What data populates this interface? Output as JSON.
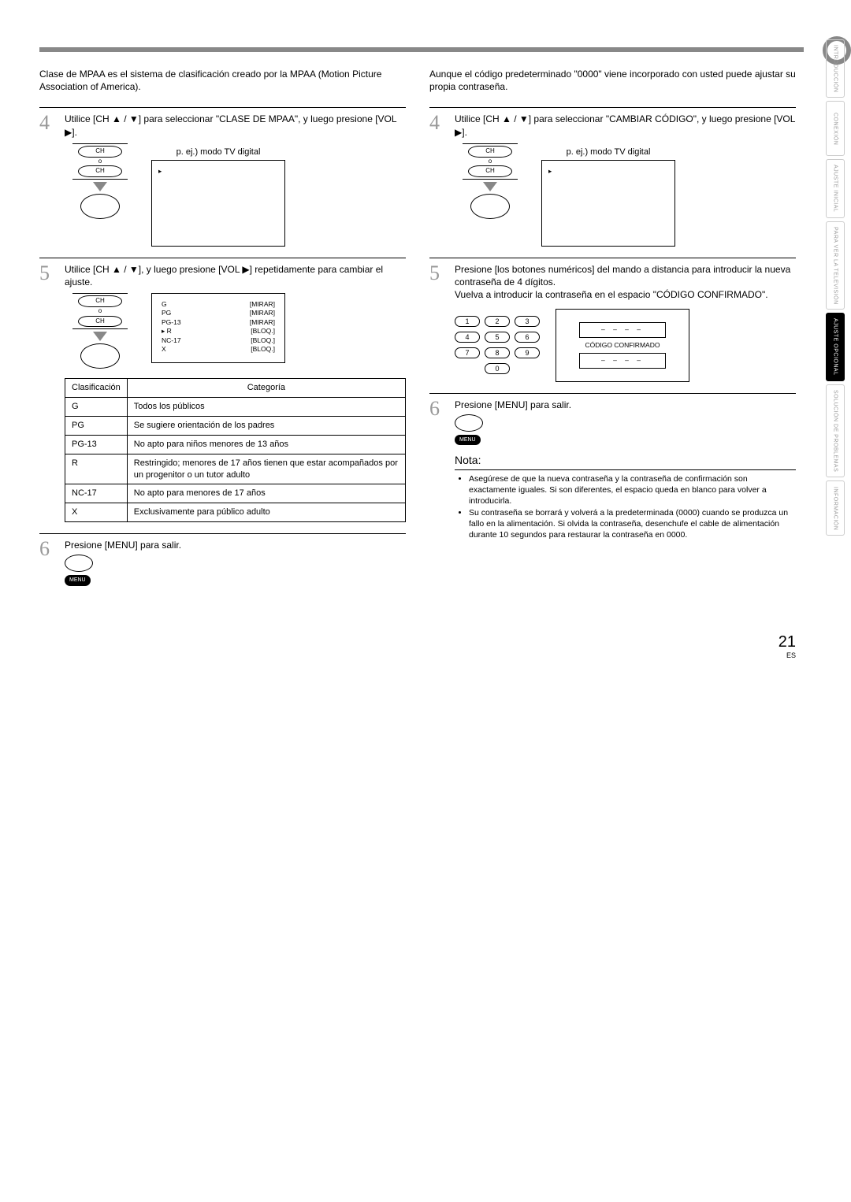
{
  "sideTabs": [
    "INTRODUCCIÓN",
    "CONEXIÓN",
    "AJUSTE INICIAL",
    "PARA VER LA TELEVISIÓN",
    "AJUSTE OPCIONAL",
    "SOLUCIÓN DE PROBLEMAS",
    "INFORMACIÓN"
  ],
  "activeTabIndex": 4,
  "left": {
    "intro": "Clase de MPAA es el sistema de clasificación creado por la MPAA (Motion Picture Association of America).",
    "step4": "Utilice [CH ▲ / ▼] para seleccionar \"CLASE DE MPAA\", y luego presione [VOL ▶].",
    "egCaption": "p. ej.) modo TV digital",
    "step5": "Utilice [CH ▲ / ▼], y luego presione [VOL ▶] repetidamente para cambiar el ajuste.",
    "ratingsList": [
      {
        "code": "G",
        "state": "[MIRAR]"
      },
      {
        "code": "PG",
        "state": "[MIRAR]"
      },
      {
        "code": "PG-13",
        "state": "[MIRAR]"
      },
      {
        "code": "R",
        "state": "[BLOQ.]",
        "ptr": true
      },
      {
        "code": "NC-17",
        "state": "[BLOQ.]"
      },
      {
        "code": "X",
        "state": "[BLOQ.]"
      }
    ],
    "tableHead": {
      "c1": "Clasificación",
      "c2": "Categoría"
    },
    "tableRows": [
      {
        "c1": "G",
        "c2": "Todos los públicos"
      },
      {
        "c1": "PG",
        "c2": "Se sugiere orientación de los padres"
      },
      {
        "c1": "PG-13",
        "c2": "No apto para niños menores de 13 años"
      },
      {
        "c1": "R",
        "c2": "Restringido; menores de 17 años tienen que estar acompañados por un progenitor o un tutor adulto"
      },
      {
        "c1": "NC-17",
        "c2": "No apto para menores de 17 años"
      },
      {
        "c1": "X",
        "c2": "Exclusivamente para público adulto"
      }
    ],
    "step6": "Presione [MENU] para salir.",
    "menuLabel": "MENU"
  },
  "right": {
    "intro": "Aunque el código predeterminado \"0000\" viene incorporado con usted puede ajustar su propia contraseña.",
    "step4": "Utilice [CH ▲ / ▼] para seleccionar \"CAMBIAR CÓDIGO\", y luego presione [VOL ▶].",
    "egCaption": "p. ej.) modo TV digital",
    "step5a": "Presione [los botones numéricos] del mando a distancia para introducir la nueva contraseña de 4 dígitos.",
    "step5b": "Vuelva a introducir la contraseña en el espacio \"CÓDIGO CONFIRMADO\".",
    "codeConfirm": "CÓDIGO CONFIRMADO",
    "dashes": "– – – –",
    "step6": "Presione [MENU] para salir.",
    "menuLabel": "MENU",
    "noteHeading": "Nota:",
    "notes": [
      "Asegúrese de que la nueva contraseña y la contraseña de confirmación son exactamente iguales. Si son diferentes, el espacio queda en blanco para volver a introducirla.",
      "Su contraseña se borrará y volverá a la predeterminada (0000) cuando se produzca un fallo en la alimentación. Si olvida la contraseña, desenchufe el cable de alimentación durante 10 segundos para restaurar la contraseña en 0000."
    ]
  },
  "remote": {
    "ch": "CH",
    "o": "o"
  },
  "keys": [
    "1",
    "2",
    "3",
    "4",
    "5",
    "6",
    "7",
    "8",
    "9",
    "0"
  ],
  "pointerGlyph": "▸",
  "pageNum": "21",
  "pageCode": "ES"
}
